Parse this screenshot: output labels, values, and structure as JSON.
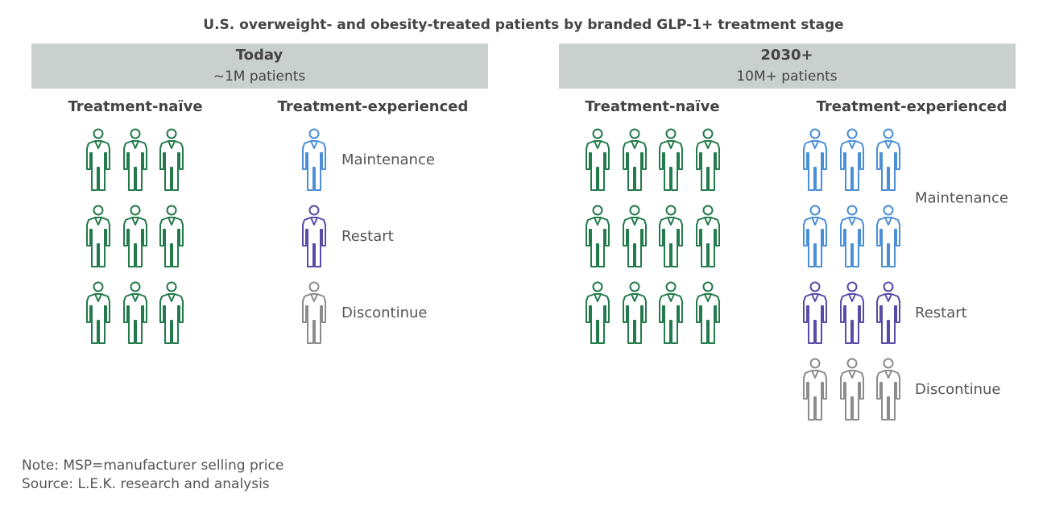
{
  "title": "U.S. overweight- and obesity-treated patients by branded GLP-1+ treatment stage",
  "panels": [
    {
      "header": "Today",
      "subheader": "~1M patients",
      "naive": {
        "label": "Treatment-naïve",
        "icons": 9,
        "color": "#237a4b"
      },
      "experienced": {
        "label": "Treatment-experienced",
        "segments": [
          {
            "name": "Maintenance",
            "icons": 1,
            "color": "#4b8fd6"
          },
          {
            "name": "Restart",
            "icons": 1,
            "color": "#5b4aa8"
          },
          {
            "name": "Discontinue",
            "icons": 1,
            "color": "#8a8d8c"
          }
        ]
      }
    },
    {
      "header": "2030+",
      "subheader": "10M+ patients",
      "naive": {
        "label": "Treatment-naïve",
        "icons": 12,
        "color": "#237a4b"
      },
      "experienced": {
        "label": "Treatment-experienced",
        "segments": [
          {
            "name": "Maintenance",
            "icons": 6,
            "color": "#4b8fd6"
          },
          {
            "name": "Restart",
            "icons": 3,
            "color": "#5b4aa8"
          },
          {
            "name": "Discontinue",
            "icons": 3,
            "color": "#8a8d8c"
          }
        ]
      }
    }
  ],
  "notes": [
    "Note: MSP=manufacturer selling price",
    "Source: L.E.K. research and analysis"
  ]
}
